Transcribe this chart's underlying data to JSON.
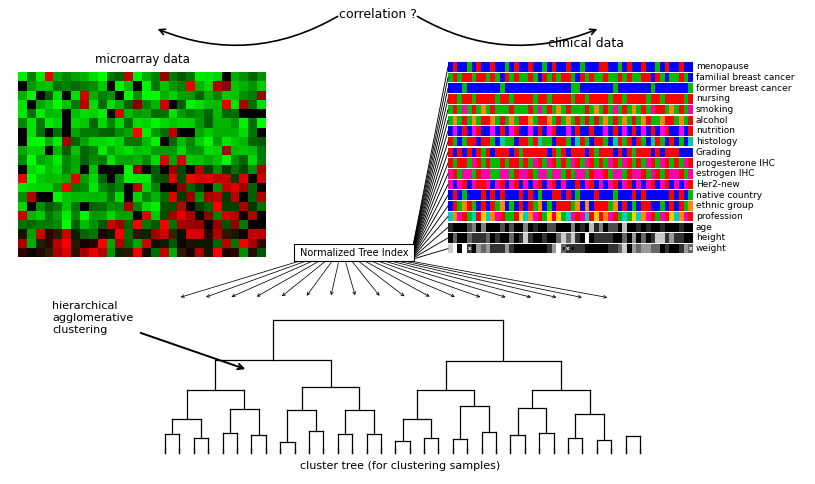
{
  "title_correlation": "correlation ?",
  "label_microarray": "microarray data",
  "label_clinical": "clinical data",
  "label_cluster": "cluster tree (for clustering samples)",
  "label_hierarchical": "hierarchical\nagglomerative\nclustering",
  "label_nti": "Normalized Tree Index",
  "clinical_labels": [
    "menopause",
    "familial breast cancer",
    "former breast cancer",
    "nursing",
    "smoking",
    "alcohol",
    "nutrition",
    "histology",
    "Grading",
    "progesterone IHC",
    "estrogen IHC",
    "Her2-new",
    "native country",
    "ethnic group",
    "profession",
    "age",
    "height",
    "weight"
  ],
  "bg_color": "#ffffff"
}
